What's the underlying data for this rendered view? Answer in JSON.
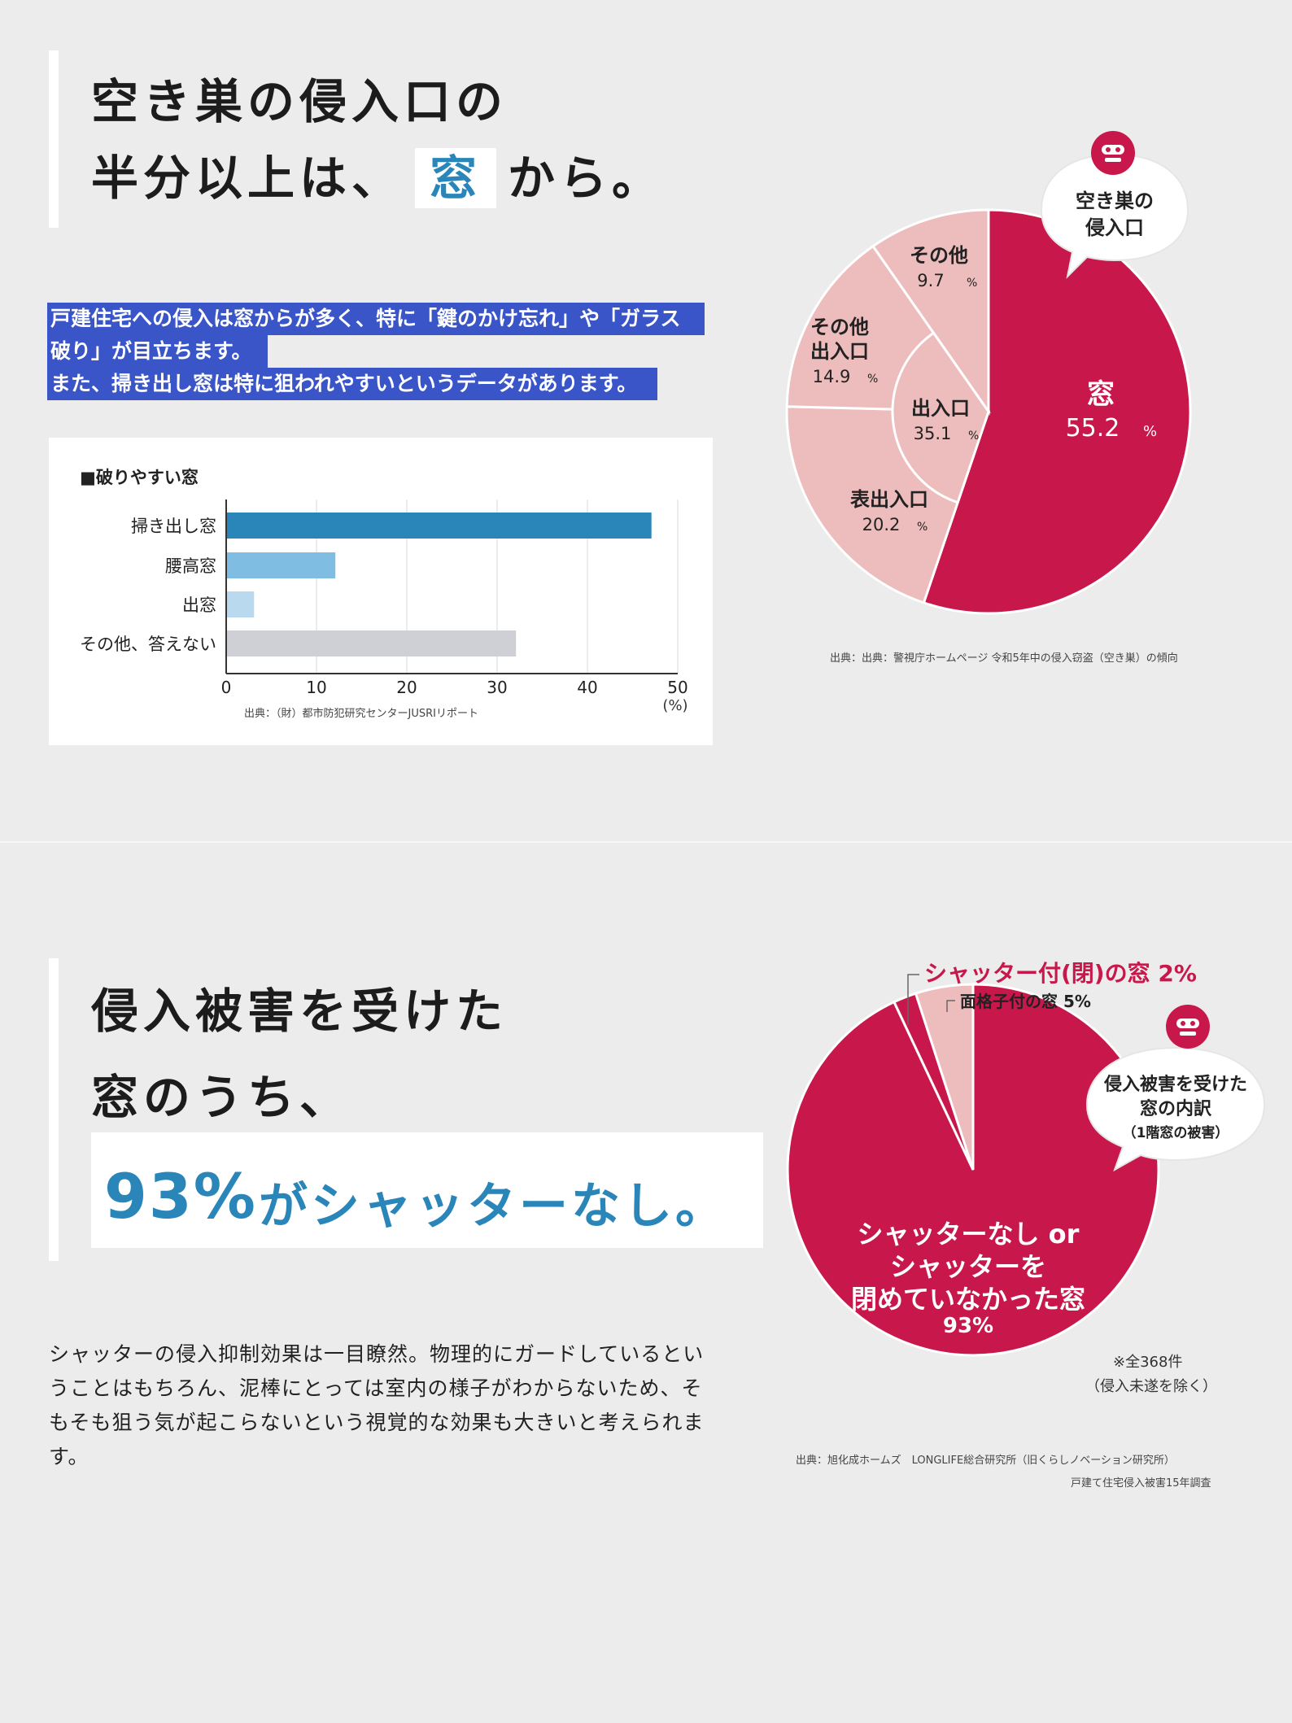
{
  "section1": {
    "headline_line1": "空き巣の侵入口の",
    "headline_line2_prefix": "半分以上は、",
    "headline_highlight": "窓",
    "headline_line2_suffix": "から。",
    "selected_text": [
      "戸建住宅への侵入は窓からが多く、特に「鍵のかけ忘れ」や「ガラス",
      "破り」が目立ちます。",
      "また、掃き出し窓は特に狙われやすいというデータがあります。"
    ],
    "source_pie": "出典：出典：警視庁ホームページ 令和5年中の侵入窃盗（空き巣）の傾向",
    "source_bar": "出典：（財）都市防犯研究センターJUSRIリポート",
    "bubble": [
      "空き巣の",
      "侵入口"
    ]
  },
  "section2": {
    "headline_line1": "侵入被害を受けた",
    "headline_line2": "窓のうち、",
    "headline_highlight_num": "93%",
    "headline_highlight_rest": "がシャッターなし。",
    "paragraph": [
      "シャッターの侵入抑制効果は一目瞭然。物理的にガードしているとい",
      "うことはもちろん、泥棒にとっては室内の様子がわからないため、そ",
      "もそも狙う気が起こらないという視覚的な効果も大きいと考えられま",
      "す。"
    ],
    "bubble": [
      "侵入被害を受けた",
      "窓の内訳",
      "（1階窓の被害）"
    ],
    "note": [
      "※全368件",
      "（侵入未遂を除く）"
    ],
    "source": [
      "出典：旭化成ホームズ　LONGLIFE総合研究所（旧くらしノベーション研究所）",
      "戸建て住宅侵入被害15年調査"
    ]
  },
  "colors": {
    "crimson": "#c8174a",
    "pink": "#edbcbc",
    "blue": "#2a86b8",
    "lightblue": "#7fbde3",
    "gray": "#cfd0d6",
    "selection": "#3a55c8"
  },
  "chart_data": [
    {
      "type": "bar",
      "title": "■破りやすい窓",
      "categories": [
        "掃き出し窓",
        "腰高窓",
        "出窓",
        "その他、答えない"
      ],
      "values": [
        47,
        12,
        3,
        32
      ],
      "xlim": [
        0,
        50
      ],
      "xticks": [
        "0",
        "10",
        "20",
        "30",
        "40",
        "50"
      ],
      "xlabel": "(%)"
    },
    {
      "type": "pie",
      "slices": [
        {
          "name": "窓",
          "value": 55.2,
          "display": "55.2"
        },
        {
          "name": "表出入口",
          "value": 20.2,
          "display": "20.2",
          "group": "出入口"
        },
        {
          "name": "その他出入口",
          "value": 14.9,
          "display": "14.9",
          "group": "出入口"
        },
        {
          "name": "その他",
          "value": 9.7,
          "display": "9.7"
        }
      ],
      "inner_group": {
        "name": "出入口",
        "value": 35.1,
        "display": "35.1"
      },
      "unit": "%"
    },
    {
      "type": "pie",
      "slices": [
        {
          "name": "シャッターなし or シャッターを閉めていなかった窓",
          "value": 93,
          "display": "93%"
        },
        {
          "name": "シャッター付(閉)の窓",
          "value": 2,
          "display": "2%"
        },
        {
          "name": "面格子付の窓",
          "value": 5,
          "display": "5%"
        }
      ]
    }
  ]
}
